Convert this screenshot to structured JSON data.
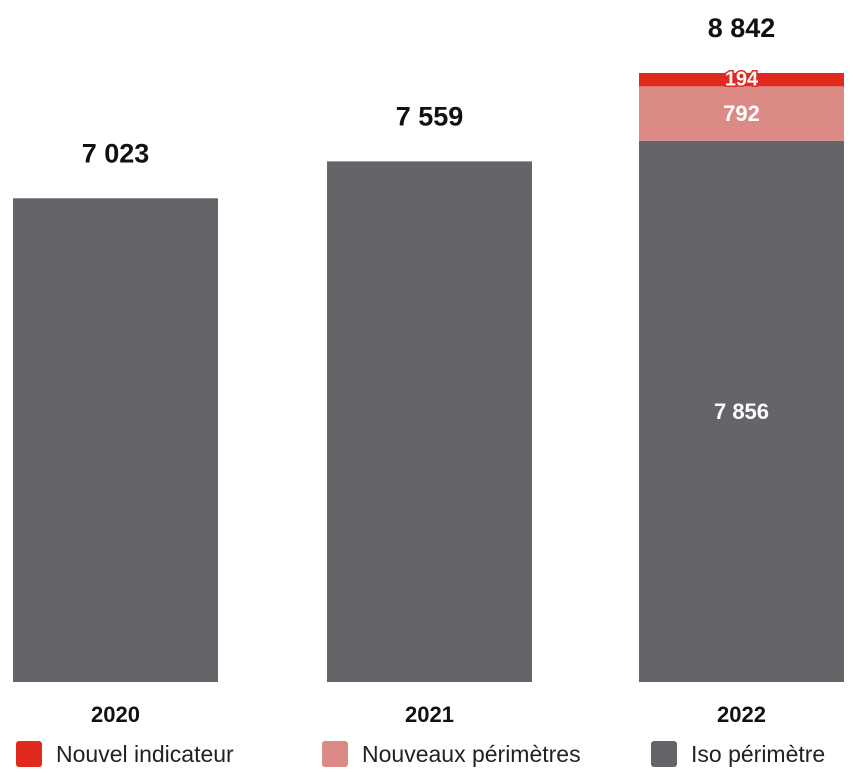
{
  "chart_data": {
    "type": "bar",
    "stacked": true,
    "categories": [
      "2020",
      "2021",
      "2022"
    ],
    "series": [
      {
        "name": "Iso périmètre",
        "values": [
          7023,
          7559,
          7856
        ],
        "color": "#636569",
        "show_labels": [
          false,
          false,
          true
        ]
      },
      {
        "name": "Nouveaux périmètres",
        "values": [
          0,
          0,
          792
        ],
        "color": "#dc8a86",
        "show_labels": [
          false,
          false,
          true
        ]
      },
      {
        "name": "Nouvel indicateur",
        "values": [
          0,
          0,
          194
        ],
        "color": "#e02a1e",
        "show_labels": [
          false,
          false,
          true
        ]
      }
    ],
    "totals": [
      "7 023",
      "7 559",
      "8 842"
    ],
    "segment_labels": [
      [
        "",
        "",
        "7 856"
      ],
      [
        "",
        "",
        "792"
      ],
      [
        "",
        "",
        "194"
      ]
    ],
    "title": "",
    "xlabel": "",
    "ylabel": "",
    "ylim": [
      0,
      8842
    ],
    "grid": false,
    "legend_position": "bottom"
  }
}
